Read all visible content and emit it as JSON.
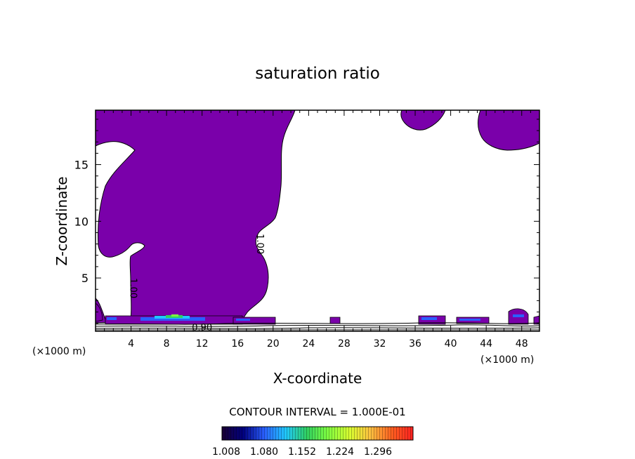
{
  "chart_data": {
    "type": "contour",
    "title": "saturation ratio",
    "xlabel": "X-coordinate",
    "ylabel": "Z-coordinate",
    "x_unit_label": "(×1000 m)",
    "x_unit_label_right": "(×1000 m)",
    "xlim": [
      0,
      50
    ],
    "ylim": [
      0.3,
      19.8
    ],
    "xticks": [
      4,
      8,
      12,
      16,
      20,
      24,
      28,
      32,
      36,
      40,
      44,
      48
    ],
    "xtick_labels": [
      "4",
      "8",
      "12",
      "16",
      "20",
      "24",
      "28",
      "32",
      "36",
      "40",
      "44",
      "48"
    ],
    "yticks": [
      5,
      10,
      15
    ],
    "ytick_labels": [
      "5",
      "10",
      "15"
    ],
    "contour_labels": [
      {
        "text": "1.00",
        "x": 18.2,
        "z": 8.0
      },
      {
        "text": "1.00",
        "x": 3.9,
        "z": 4.1
      },
      {
        "text": "0.90",
        "x": 12.0,
        "z": 0.6
      }
    ],
    "fill_color": "#7a00aa",
    "contour_interval_text": "CONTOUR INTERVAL = 1.000E-01",
    "colorbar": {
      "labels": [
        "1.008",
        "1.080",
        "1.152",
        "1.224",
        "1.296"
      ],
      "colors": [
        "#1a0033",
        "#000080",
        "#2a60ff",
        "#20c8ff",
        "#30d060",
        "#80ff40",
        "#d8ff30",
        "#ffc040",
        "#ff6020",
        "#ff2020"
      ]
    }
  }
}
